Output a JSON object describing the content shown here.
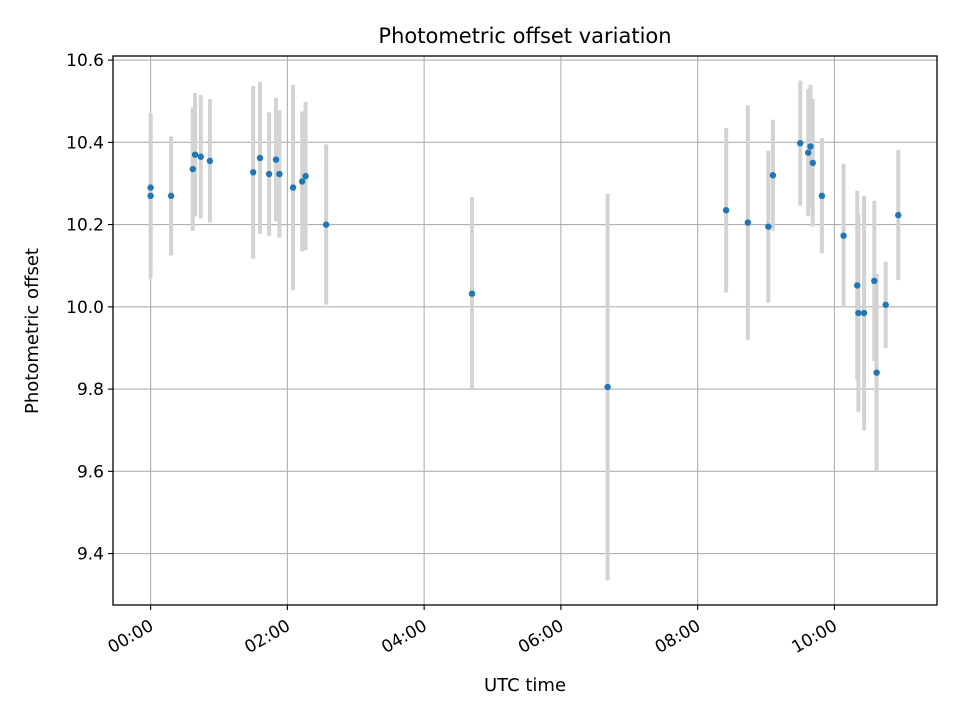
{
  "chart_data": {
    "type": "scatter",
    "title": "Photometric offset variation",
    "xlabel": "UTC time",
    "ylabel": "Photometric offset",
    "x_unit": "hours",
    "xlim": [
      -0.55,
      11.5
    ],
    "ylim": [
      9.275,
      10.61
    ],
    "grid": true,
    "x_ticks": [
      {
        "value": 0,
        "label": "00:00"
      },
      {
        "value": 2,
        "label": "02:00"
      },
      {
        "value": 4,
        "label": "04:00"
      },
      {
        "value": 6,
        "label": "06:00"
      },
      {
        "value": 8,
        "label": "08:00"
      },
      {
        "value": 10,
        "label": "10:00"
      }
    ],
    "y_ticks": [
      {
        "value": 9.4,
        "label": "9.4"
      },
      {
        "value": 9.6,
        "label": "9.6"
      },
      {
        "value": 9.8,
        "label": "9.8"
      },
      {
        "value": 10.0,
        "label": "10.0"
      },
      {
        "value": 10.2,
        "label": "10.2"
      },
      {
        "value": 10.4,
        "label": "10.4"
      },
      {
        "value": 10.6,
        "label": "10.6"
      }
    ],
    "colors": {
      "point": "#1f77b4",
      "errorbar": "#d3d3d3",
      "grid": "#b0b0b0"
    },
    "points": [
      {
        "x": "00:00",
        "y": 10.27,
        "err": 0.2
      },
      {
        "x": "00:00",
        "y": 10.29,
        "err": 0.18
      },
      {
        "x": "00:18",
        "y": 10.27,
        "err": 0.145
      },
      {
        "x": "00:37",
        "y": 10.335,
        "err": 0.15
      },
      {
        "x": "00:39",
        "y": 10.37,
        "err": 0.15
      },
      {
        "x": "00:44",
        "y": 10.365,
        "err": 0.15
      },
      {
        "x": "00:52",
        "y": 10.355,
        "err": 0.15
      },
      {
        "x": "01:30",
        "y": 10.327,
        "err": 0.21
      },
      {
        "x": "01:36",
        "y": 10.362,
        "err": 0.185
      },
      {
        "x": "01:44",
        "y": 10.323,
        "err": 0.15
      },
      {
        "x": "01:50",
        "y": 10.358,
        "err": 0.15
      },
      {
        "x": "01:53",
        "y": 10.323,
        "err": 0.155
      },
      {
        "x": "02:05",
        "y": 10.29,
        "err": 0.25
      },
      {
        "x": "02:13",
        "y": 10.305,
        "err": 0.17
      },
      {
        "x": "02:16",
        "y": 10.318,
        "err": 0.18
      },
      {
        "x": "02:34",
        "y": 10.2,
        "err": 0.195
      },
      {
        "x": "04:42",
        "y": 10.032,
        "err": 0.235
      },
      {
        "x": "06:41",
        "y": 9.805,
        "err": 0.47
      },
      {
        "x": "08:25",
        "y": 10.235,
        "err": 0.2
      },
      {
        "x": "08:44",
        "y": 10.205,
        "err": 0.285
      },
      {
        "x": "09:02",
        "y": 10.195,
        "err": 0.185
      },
      {
        "x": "09:06",
        "y": 10.32,
        "err": 0.135
      },
      {
        "x": "09:30",
        "y": 10.398,
        "err": 0.152
      },
      {
        "x": "09:37",
        "y": 10.375,
        "err": 0.155
      },
      {
        "x": "09:39",
        "y": 10.39,
        "err": 0.15
      },
      {
        "x": "09:41",
        "y": 10.35,
        "err": 0.155
      },
      {
        "x": "09:49",
        "y": 10.27,
        "err": 0.14
      },
      {
        "x": "10:08",
        "y": 10.173,
        "err": 0.175
      },
      {
        "x": "10:20",
        "y": 10.052,
        "err": 0.23
      },
      {
        "x": "10:21",
        "y": 9.985,
        "err": 0.24
      },
      {
        "x": "10:26",
        "y": 9.985,
        "err": 0.285
      },
      {
        "x": "10:35",
        "y": 10.063,
        "err": 0.195
      },
      {
        "x": "10:37",
        "y": 9.84,
        "err": 0.24
      },
      {
        "x": "10:45",
        "y": 10.005,
        "err": 0.105
      },
      {
        "x": "10:56",
        "y": 10.223,
        "err": 0.158
      }
    ]
  }
}
